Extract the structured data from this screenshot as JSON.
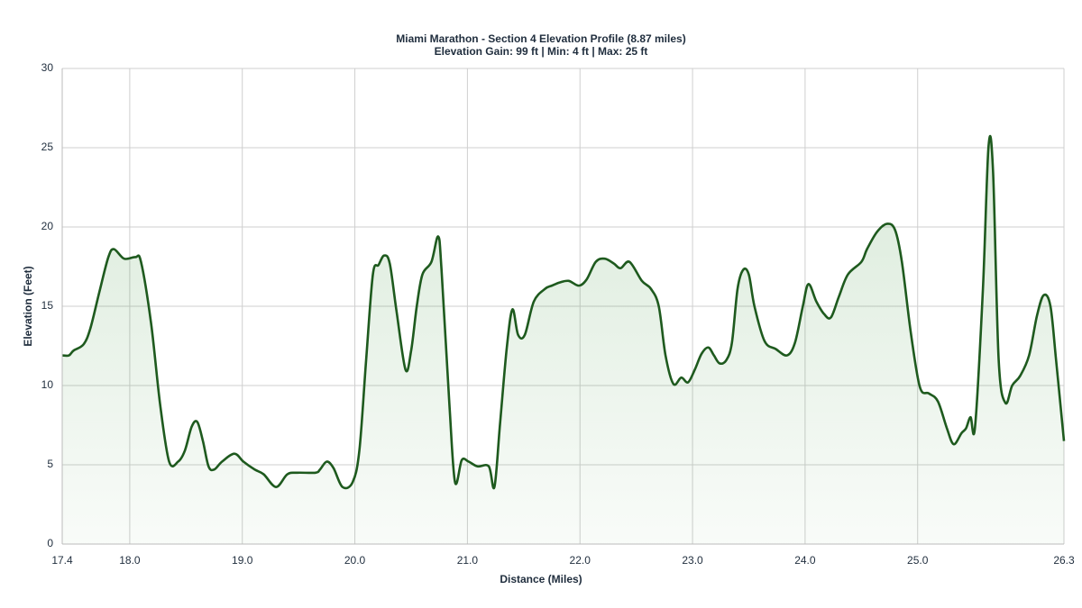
{
  "chart_data": {
    "type": "area",
    "title": "Miami Marathon - Section 4 Elevation Profile (8.87 miles)",
    "subtitle": "Elevation Gain: 99 ft | Min: 4 ft | Max: 25 ft",
    "x_label": "Distance (Miles)",
    "y_label": "Elevation (Feet)",
    "color": "#1e5a1e",
    "grid": true,
    "xlim": [
      17.4,
      26.3
    ],
    "xticks": [
      17.4,
      {
        "value": 18,
        "label": "18.0"
      },
      {
        "value": 19,
        "label": "19.0"
      },
      {
        "value": 20,
        "label": "20.0"
      },
      {
        "value": 21,
        "label": "21.0"
      },
      {
        "value": 22,
        "label": "22.0"
      },
      {
        "value": 23,
        "label": "23.0"
      },
      {
        "value": 24,
        "label": "24.0"
      },
      {
        "value": 25,
        "label": "25.0"
      },
      26.3
    ],
    "ylim": [
      0,
      30
    ],
    "yticks": [
      0,
      5,
      10,
      15,
      20,
      25,
      30
    ],
    "x": [
      17.4,
      17.46,
      17.5,
      17.59,
      17.65,
      17.73,
      17.81,
      17.86,
      17.95,
      18.05,
      18.1,
      18.19,
      18.27,
      18.35,
      18.43,
      18.49,
      18.55,
      18.6,
      18.65,
      18.7,
      18.75,
      18.82,
      18.93,
      19.01,
      19.11,
      19.19,
      19.3,
      19.4,
      19.49,
      19.65,
      19.69,
      19.75,
      19.81,
      19.89,
      19.98,
      20.04,
      20.1,
      20.16,
      20.21,
      20.26,
      20.31,
      20.37,
      20.45,
      20.5,
      20.55,
      20.6,
      20.68,
      20.74,
      20.77,
      20.84,
      20.89,
      20.95,
      21.01,
      21.09,
      21.19,
      21.24,
      21.29,
      21.35,
      21.4,
      21.45,
      21.51,
      21.59,
      21.69,
      21.75,
      21.82,
      21.9,
      21.99,
      22.06,
      22.14,
      22.22,
      22.3,
      22.36,
      22.44,
      22.55,
      22.63,
      22.7,
      22.76,
      22.83,
      22.9,
      22.96,
      23.02,
      23.08,
      23.14,
      23.19,
      23.24,
      23.3,
      23.35,
      23.4,
      23.45,
      23.5,
      23.55,
      23.64,
      23.74,
      23.84,
      23.91,
      23.98,
      24.03,
      24.1,
      24.17,
      24.23,
      24.3,
      24.38,
      24.5,
      24.55,
      24.64,
      24.73,
      24.8,
      24.86,
      24.94,
      25.02,
      25.1,
      25.18,
      25.26,
      25.32,
      25.39,
      25.43,
      25.47,
      25.51,
      25.58,
      25.63,
      25.67,
      25.72,
      25.78,
      25.84,
      25.91,
      25.99,
      26.06,
      26.12,
      26.18,
      26.23,
      26.3
    ],
    "values": [
      11.9,
      11.9,
      12.2,
      12.6,
      13.6,
      15.9,
      18.1,
      18.6,
      18.0,
      18.1,
      17.8,
      13.9,
      8.8,
      5.2,
      5.2,
      5.9,
      7.4,
      7.7,
      6.5,
      4.9,
      4.7,
      5.2,
      5.7,
      5.2,
      4.7,
      4.4,
      3.6,
      4.4,
      4.5,
      4.5,
      4.7,
      5.2,
      4.8,
      3.6,
      3.9,
      5.9,
      11.6,
      17.0,
      17.6,
      18.2,
      17.7,
      14.7,
      11.0,
      12.2,
      15.0,
      17.0,
      17.8,
      19.4,
      17.3,
      8.8,
      3.9,
      5.3,
      5.2,
      4.9,
      4.9,
      3.6,
      7.6,
      12.4,
      14.8,
      13.2,
      13.2,
      15.3,
      16.1,
      16.3,
      16.5,
      16.6,
      16.3,
      16.7,
      17.8,
      18.0,
      17.7,
      17.4,
      17.8,
      16.6,
      16.1,
      15.0,
      11.9,
      10.1,
      10.5,
      10.2,
      11.0,
      12.0,
      12.4,
      11.9,
      11.4,
      11.6,
      12.7,
      16.1,
      17.3,
      17.0,
      15.0,
      12.8,
      12.3,
      11.9,
      12.7,
      15.0,
      16.4,
      15.3,
      14.5,
      14.3,
      15.6,
      17.0,
      17.8,
      18.6,
      19.7,
      20.2,
      19.8,
      17.8,
      13.3,
      9.9,
      9.5,
      9.0,
      7.3,
      6.3,
      7.0,
      7.3,
      8.0,
      7.4,
      16.1,
      25.1,
      23.5,
      11.6,
      8.9,
      10.0,
      10.6,
      11.9,
      14.4,
      15.7,
      15.0,
      11.6,
      6.5
    ]
  }
}
